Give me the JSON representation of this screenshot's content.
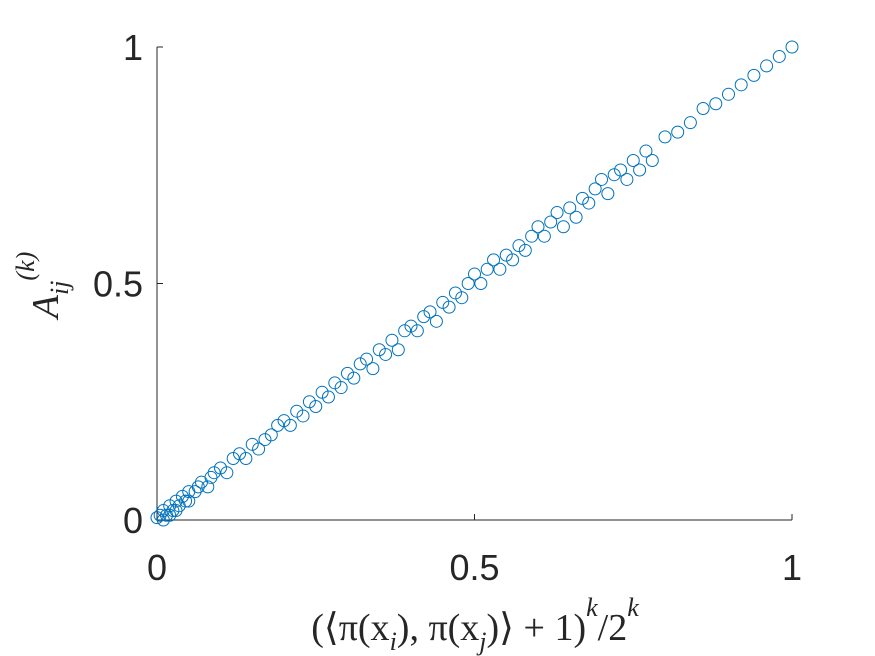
{
  "chart_data": {
    "type": "scatter",
    "xlabel": [
      {
        "t": "(⟨π(x"
      },
      {
        "t": "i",
        "sub": true
      },
      {
        "t": "), π(x"
      },
      {
        "t": "j",
        "sub": true
      },
      {
        "t": ")⟩ + 1)"
      },
      {
        "t": "k",
        "sup": true
      },
      {
        "t": "/2"
      },
      {
        "t": "k",
        "sup": true
      }
    ],
    "ylabel": [
      {
        "t": "A"
      },
      {
        "t": "ij",
        "sub": true
      },
      {
        "t": "(k)",
        "sup": true
      }
    ],
    "xlim": [
      0,
      1
    ],
    "ylim": [
      0,
      1
    ],
    "xticks": [
      0,
      0.5,
      1
    ],
    "yticks": [
      0,
      0.5,
      1
    ],
    "series": [
      {
        "color": "#0072BD",
        "x": [
          0,
          0.005,
          0.01,
          0.01,
          0.015,
          0.02,
          0.02,
          0.025,
          0.03,
          0.03,
          0.035,
          0.04,
          0.045,
          0.05,
          0.05,
          0.06,
          0.065,
          0.07,
          0.08,
          0.085,
          0.09,
          0.1,
          0.11,
          0.12,
          0.13,
          0.14,
          0.15,
          0.16,
          0.17,
          0.18,
          0.19,
          0.2,
          0.21,
          0.22,
          0.23,
          0.24,
          0.25,
          0.26,
          0.27,
          0.28,
          0.29,
          0.3,
          0.31,
          0.32,
          0.33,
          0.34,
          0.35,
          0.36,
          0.37,
          0.38,
          0.39,
          0.4,
          0.41,
          0.42,
          0.43,
          0.44,
          0.45,
          0.46,
          0.47,
          0.48,
          0.49,
          0.5,
          0.51,
          0.52,
          0.53,
          0.54,
          0.55,
          0.56,
          0.57,
          0.58,
          0.59,
          0.6,
          0.61,
          0.62,
          0.63,
          0.64,
          0.65,
          0.66,
          0.67,
          0.68,
          0.69,
          0.7,
          0.71,
          0.72,
          0.73,
          0.74,
          0.75,
          0.76,
          0.77,
          0.78,
          0.8,
          0.82,
          0.84,
          0.86,
          0.88,
          0.9,
          0.92,
          0.94,
          0.96,
          0.98,
          1.0
        ],
        "values": [
          0.005,
          0.01,
          0.02,
          0.0,
          0.01,
          0.03,
          0.01,
          0.02,
          0.04,
          0.02,
          0.03,
          0.05,
          0.04,
          0.06,
          0.04,
          0.06,
          0.07,
          0.08,
          0.07,
          0.09,
          0.1,
          0.11,
          0.1,
          0.13,
          0.14,
          0.13,
          0.16,
          0.15,
          0.17,
          0.18,
          0.2,
          0.21,
          0.2,
          0.23,
          0.22,
          0.25,
          0.24,
          0.27,
          0.26,
          0.29,
          0.28,
          0.31,
          0.3,
          0.33,
          0.34,
          0.32,
          0.36,
          0.35,
          0.38,
          0.36,
          0.4,
          0.41,
          0.4,
          0.43,
          0.44,
          0.42,
          0.46,
          0.45,
          0.48,
          0.47,
          0.5,
          0.52,
          0.5,
          0.53,
          0.55,
          0.53,
          0.56,
          0.55,
          0.58,
          0.57,
          0.6,
          0.62,
          0.6,
          0.63,
          0.65,
          0.62,
          0.66,
          0.64,
          0.68,
          0.67,
          0.7,
          0.72,
          0.69,
          0.73,
          0.74,
          0.72,
          0.76,
          0.74,
          0.78,
          0.76,
          0.81,
          0.82,
          0.84,
          0.87,
          0.88,
          0.9,
          0.92,
          0.94,
          0.96,
          0.98,
          1.0
        ]
      }
    ]
  }
}
